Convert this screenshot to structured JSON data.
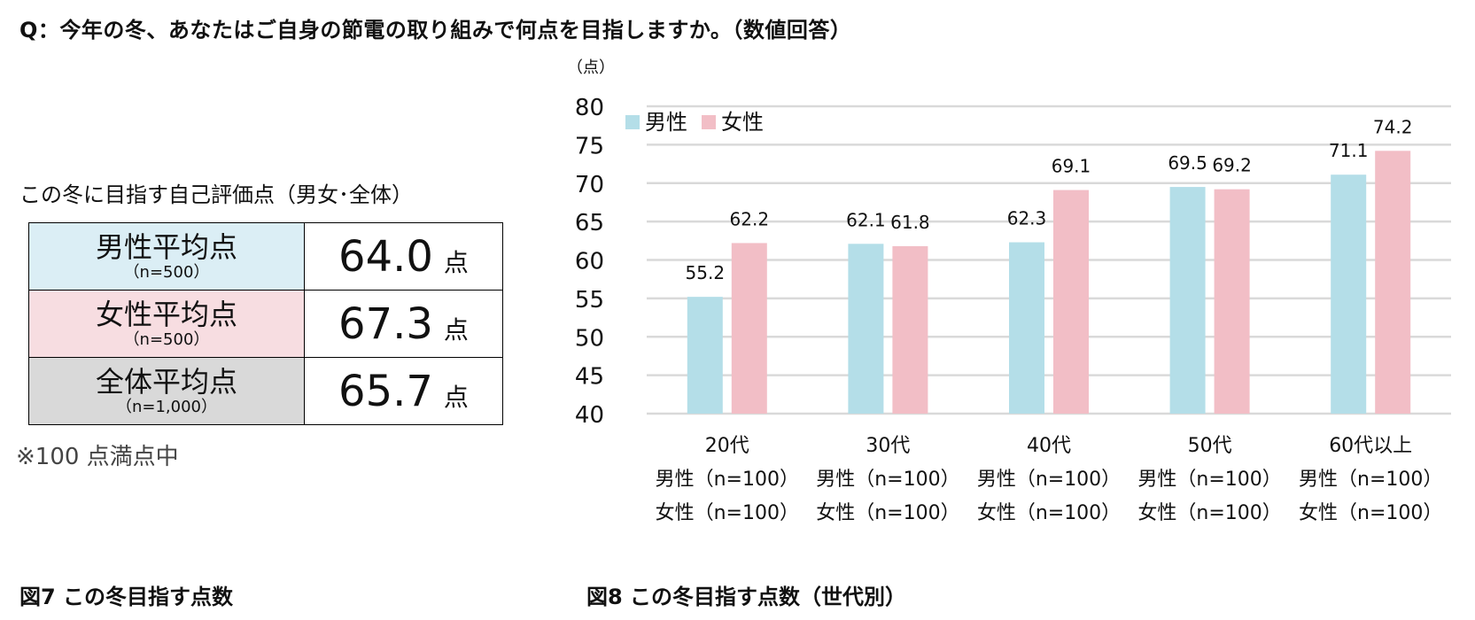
{
  "question": "Q：今年の冬、あなたはご自身の節電の取り組みで何点を目指しますか。（数値回答）",
  "table": {
    "caption": "この冬に目指す自己評価点（男女･全体）",
    "rows": [
      {
        "label": "男性平均点",
        "n": "（n=500）",
        "value": "64.0",
        "unit": "点"
      },
      {
        "label": "女性平均点",
        "n": "（n=500）",
        "value": "67.3",
        "unit": "点"
      },
      {
        "label": "全体平均点",
        "n": "（n=1,000）",
        "value": "65.7",
        "unit": "点"
      }
    ],
    "note": "※100 点満点中"
  },
  "figure7_caption": "図7  この冬目指す点数",
  "figure8_caption": "図8  この冬目指す点数（世代別）",
  "chart_data": {
    "type": "bar",
    "unit_label": "（点）",
    "categories": [
      "20代",
      "30代",
      "40代",
      "50代",
      "60代以上"
    ],
    "category_sublabels": [
      [
        "男性（n=100）",
        "女性（n=100）"
      ],
      [
        "男性（n=100）",
        "女性（n=100）"
      ],
      [
        "男性（n=100）",
        "女性（n=100）"
      ],
      [
        "男性（n=100）",
        "女性（n=100）"
      ],
      [
        "男性（n=100）",
        "女性（n=100）"
      ]
    ],
    "series": [
      {
        "name": "男性",
        "values": [
          55.2,
          62.1,
          62.3,
          69.5,
          71.1
        ]
      },
      {
        "name": "女性",
        "values": [
          62.2,
          61.8,
          69.1,
          69.2,
          74.2
        ]
      }
    ],
    "ylim": [
      40,
      80
    ],
    "yticks": [
      40,
      45,
      50,
      55,
      60,
      65,
      70,
      75,
      80
    ],
    "grid": true,
    "legend": "top-left"
  },
  "colors": {
    "male": "#b4dee8",
    "female": "#f2bec6",
    "grid": "#d9d9d9"
  }
}
